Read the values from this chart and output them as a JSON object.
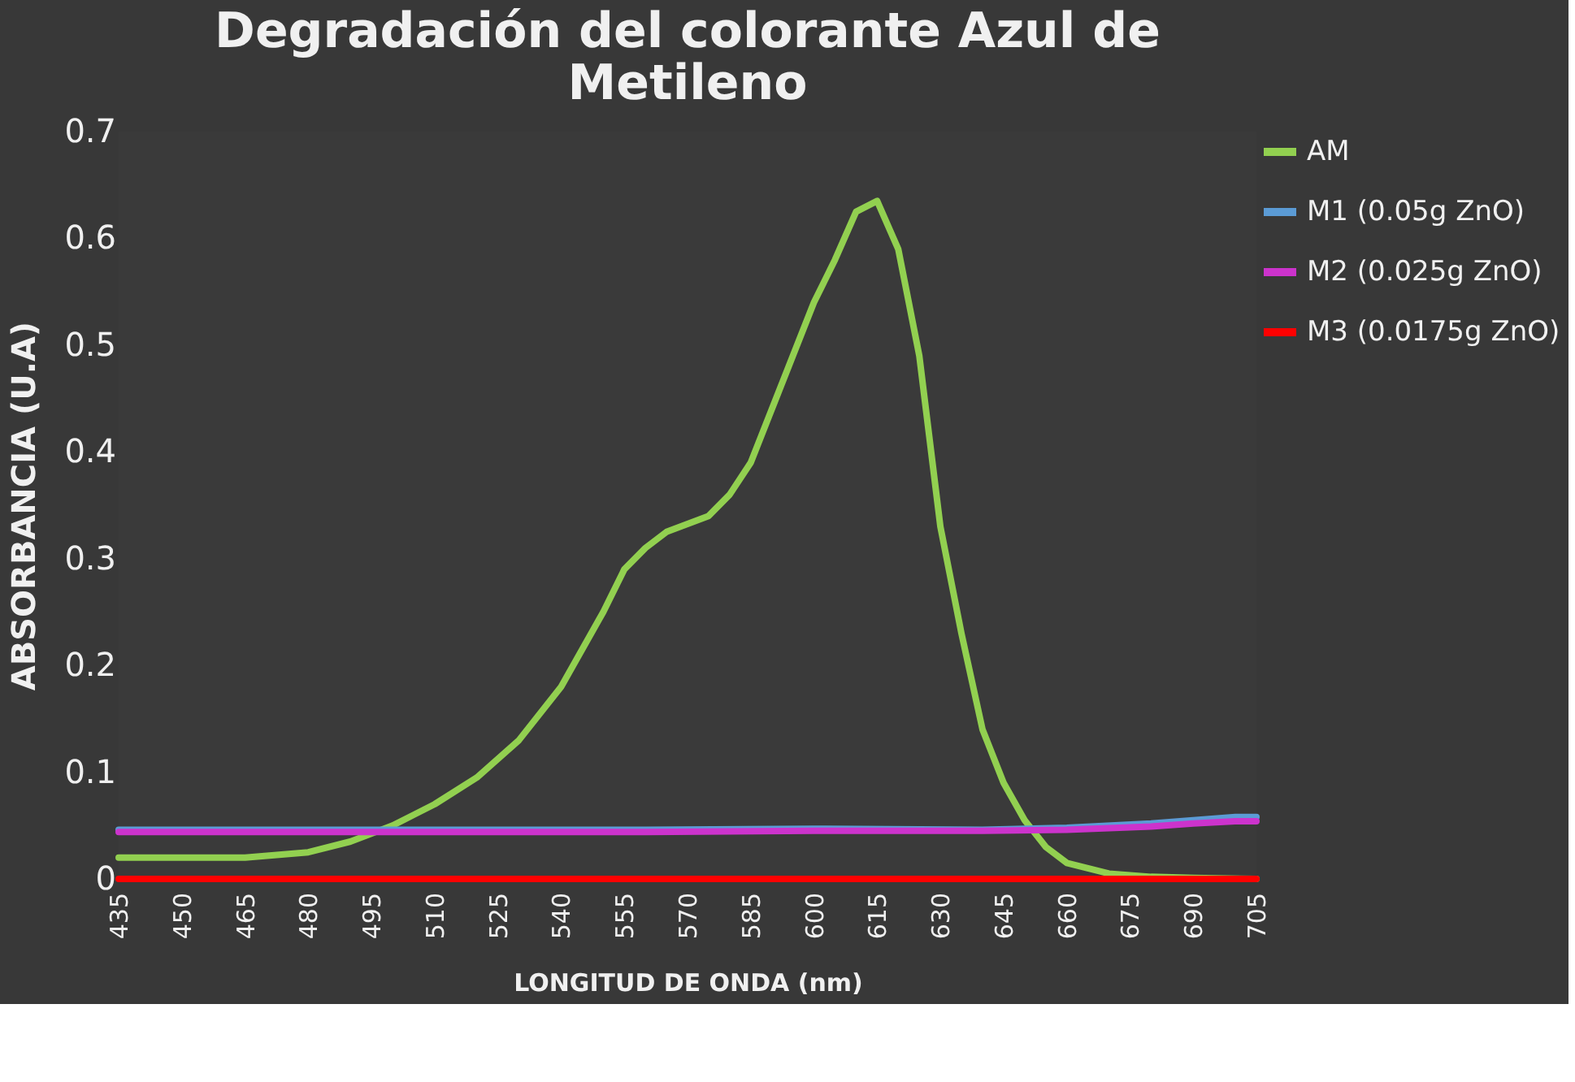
{
  "chart_data": {
    "type": "line",
    "title": "Degradación del colorante Azul de Metileno",
    "xlabel": "LONGITUD DE ONDA (nm)",
    "ylabel": "ABSORBANCIA (U.A)",
    "xlim": [
      435,
      705
    ],
    "xticks": [
      435,
      450,
      465,
      480,
      495,
      510,
      525,
      540,
      555,
      570,
      585,
      600,
      615,
      630,
      645,
      660,
      675,
      690,
      705
    ],
    "ylim": [
      0,
      0.7
    ],
    "yticks": [
      0,
      0.1,
      0.2,
      0.3,
      0.4,
      0.5,
      0.6,
      0.7
    ],
    "grid": false,
    "legend": "right",
    "marker": "none",
    "line_style": "solid",
    "series": [
      {
        "name": "AM",
        "color": "#92d050",
        "x": [
          435,
          450,
          465,
          480,
          490,
          500,
          510,
          520,
          530,
          540,
          550,
          555,
          560,
          565,
          575,
          580,
          585,
          590,
          595,
          600,
          605,
          610,
          615,
          620,
          625,
          630,
          635,
          640,
          645,
          650,
          655,
          660,
          670,
          680,
          690,
          705
        ],
        "values": [
          0.02,
          0.02,
          0.02,
          0.025,
          0.035,
          0.05,
          0.07,
          0.095,
          0.13,
          0.18,
          0.25,
          0.29,
          0.31,
          0.325,
          0.34,
          0.36,
          0.39,
          0.44,
          0.49,
          0.54,
          0.58,
          0.625,
          0.635,
          0.59,
          0.49,
          0.33,
          0.23,
          0.14,
          0.09,
          0.055,
          0.03,
          0.015,
          0.005,
          0.002,
          0.001,
          0.0
        ]
      },
      {
        "name": "M1 (0.05g ZnO)",
        "color": "#5b9bd5",
        "x": [
          435,
          500,
          560,
          600,
          640,
          660,
          680,
          690,
          700,
          705
        ],
        "values": [
          0.046,
          0.046,
          0.046,
          0.047,
          0.046,
          0.048,
          0.052,
          0.055,
          0.058,
          0.058
        ]
      },
      {
        "name": "M2 (0.025g ZnO)",
        "color": "#cc33cc",
        "x": [
          435,
          500,
          560,
          600,
          640,
          660,
          680,
          690,
          700,
          705
        ],
        "values": [
          0.044,
          0.044,
          0.044,
          0.045,
          0.045,
          0.046,
          0.049,
          0.052,
          0.054,
          0.054
        ]
      },
      {
        "name": "M3 (0.0175g ZnO)",
        "color": "#ff0000",
        "x": [
          435,
          705
        ],
        "values": [
          0.0,
          0.0
        ]
      }
    ]
  }
}
